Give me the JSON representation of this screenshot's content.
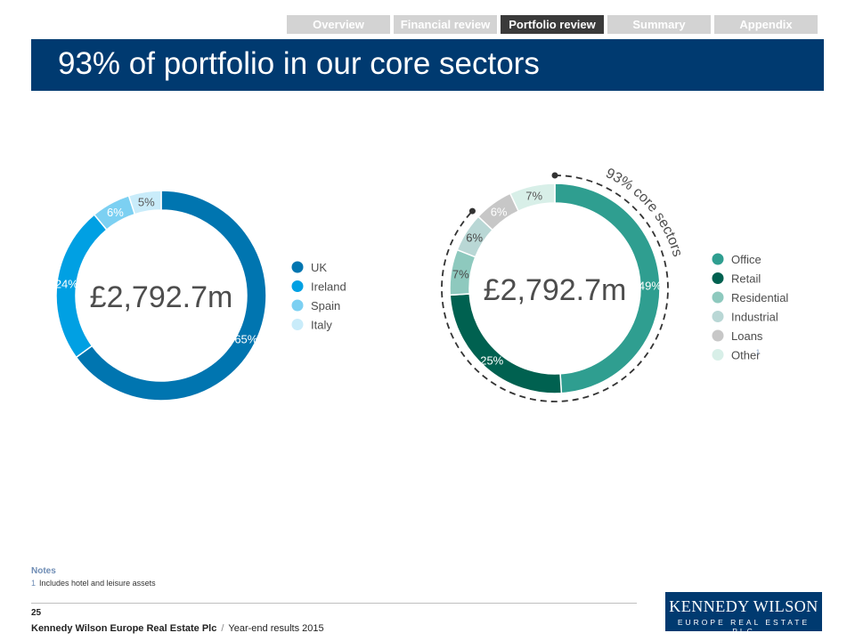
{
  "nav": {
    "tabs": [
      {
        "label": "Overview",
        "active": false
      },
      {
        "label": "Financial review",
        "active": false
      },
      {
        "label": "Portfolio review",
        "active": true
      },
      {
        "label": "Summary",
        "active": false
      },
      {
        "label": "Appendix",
        "active": false
      }
    ]
  },
  "title": "93% of portfolio in our core sectors",
  "chart_data": [
    {
      "type": "pie",
      "center_label": "£2,792.7m",
      "slices": [
        {
          "name": "UK",
          "value": 65,
          "label": "65%",
          "color": "#0075b0"
        },
        {
          "name": "Ireland",
          "value": 24,
          "label": "24%",
          "color": "#00a0e3"
        },
        {
          "name": "Spain",
          "value": 6,
          "label": "6%",
          "color": "#7cd0f2"
        },
        {
          "name": "Italy",
          "value": 5,
          "label": "5%",
          "color": "#c9ecfa"
        }
      ],
      "legend_position": "right"
    },
    {
      "type": "pie",
      "center_label": "£2,792.7m",
      "slices": [
        {
          "name": "Office",
          "value": 49,
          "label": "49%",
          "color": "#2f9e90"
        },
        {
          "name": "Retail",
          "value": 25,
          "label": "25%",
          "color": "#006150"
        },
        {
          "name": "Residential",
          "value": 7,
          "label": "7%",
          "color": "#8ec9be"
        },
        {
          "name": "Industrial",
          "value": 6,
          "label": "6%",
          "color": "#b9d7d5"
        },
        {
          "name": "Loans",
          "value": 6,
          "label": "6%",
          "color": "#c7c7c7"
        },
        {
          "name": "Other",
          "value": 7,
          "label": "7%",
          "color": "#d8efe8",
          "footnote": "1"
        }
      ],
      "annotation": "93% core sectors",
      "legend_position": "right"
    }
  ],
  "notes": {
    "title": "Notes",
    "items": [
      {
        "num": "1",
        "text": "Includes hotel and leisure assets"
      }
    ]
  },
  "footer": {
    "page_number": "25",
    "company": "Kennedy Wilson Europe Real Estate Plc",
    "separator": "/",
    "doc_title": "Year-end results 2015"
  },
  "logo": {
    "main": "KENNEDY WILSON",
    "sub": "EUROPE REAL ESTATE PLC"
  }
}
